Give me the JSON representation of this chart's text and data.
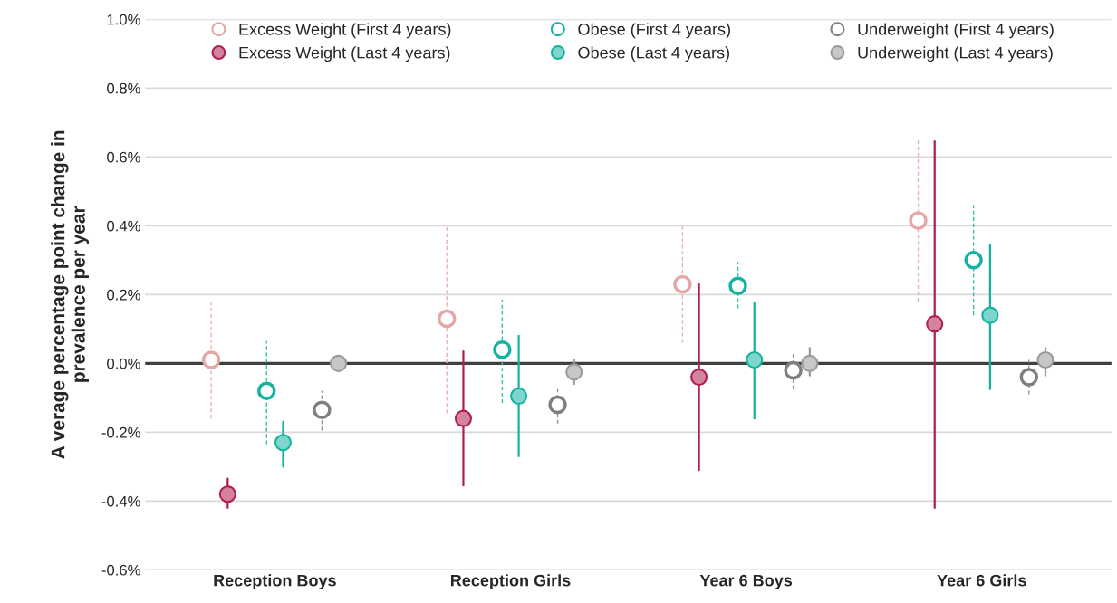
{
  "chart_data": {
    "type": "scatter",
    "ylabel": "A verage percentage point change in\nprevalence per year",
    "categories": [
      "Reception Boys",
      "Reception Girls",
      "Year 6 Boys",
      "Year 6 Girls"
    ],
    "ylim": [
      -0.6,
      1.0
    ],
    "yticks": [
      {
        "value": -0.6,
        "label": "-0.6%"
      },
      {
        "value": -0.4,
        "label": "-0.4%"
      },
      {
        "value": -0.2,
        "label": "-0.2%"
      },
      {
        "value": 0,
        "label": "0.0%"
      },
      {
        "value": 0.2,
        "label": "0.2%"
      },
      {
        "value": 0.4,
        "label": "0.4%"
      },
      {
        "value": 0.6,
        "label": "0.6%"
      },
      {
        "value": 0.8,
        "label": "0.8%"
      },
      {
        "value": 1.0,
        "label": "1.0%"
      }
    ],
    "grid": "y",
    "legend": "top",
    "marker": "circle",
    "ref_lines": [
      {
        "axis": "y",
        "value": 0,
        "color": "#404040"
      }
    ],
    "series": [
      {
        "name": "Excess Weight (First 4 years)",
        "color": "#e3a7a5",
        "line_style": "dashed",
        "values": [
          0.01,
          0.13,
          0.23,
          0.415
        ],
        "errors": [
          [
            -0.16,
            0.18
          ],
          [
            -0.145,
            0.4
          ],
          [
            0.06,
            0.405
          ],
          [
            0.18,
            0.655
          ]
        ]
      },
      {
        "name": "Excess Weight (Last 4 years)",
        "color": "#b01e4e",
        "line_style": "solid",
        "values": [
          -0.38,
          -0.16,
          -0.04,
          0.115
        ],
        "errors": [
          [
            -0.42,
            -0.335
          ],
          [
            -0.355,
            0.035
          ],
          [
            -0.31,
            0.23
          ],
          [
            -0.42,
            0.645
          ]
        ]
      },
      {
        "name": "Obese (First 4 years)",
        "color": "#13b3a0",
        "line_style": "dashed",
        "values": [
          -0.08,
          0.04,
          0.225,
          0.3
        ],
        "errors": [
          [
            -0.235,
            0.065
          ],
          [
            -0.115,
            0.185
          ],
          [
            0.16,
            0.295
          ],
          [
            0.14,
            0.46
          ]
        ]
      },
      {
        "name": "Obese (Last 4 years)",
        "color": "#13b3a0",
        "line_style": "solid",
        "values": [
          -0.23,
          -0.095,
          0.01,
          0.14
        ],
        "errors": [
          [
            -0.3,
            -0.17
          ],
          [
            -0.27,
            0.08
          ],
          [
            -0.16,
            0.175
          ],
          [
            -0.075,
            0.345
          ]
        ]
      },
      {
        "name": "Underweight (First 4 years)",
        "color": "#7f7f7f",
        "line_style": "dashed",
        "values": [
          -0.135,
          -0.12,
          -0.02,
          -0.04
        ],
        "errors": [
          [
            -0.195,
            -0.08
          ],
          [
            -0.175,
            -0.075
          ],
          [
            -0.075,
            0.03
          ],
          [
            -0.09,
            0.01
          ]
        ]
      },
      {
        "name": "Underweight (Last 4 years)",
        "color": "#9a9a9a",
        "line_style": "solid",
        "values": [
          0.0,
          -0.025,
          0.0,
          0.01
        ],
        "errors": [
          null,
          [
            -0.06,
            0.01
          ],
          [
            -0.035,
            0.045
          ],
          [
            -0.035,
            0.045
          ]
        ]
      }
    ]
  }
}
